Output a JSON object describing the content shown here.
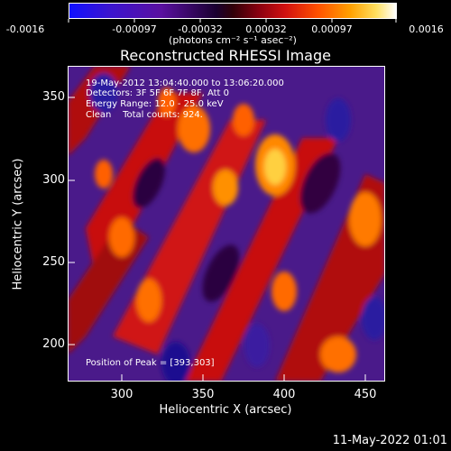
{
  "colorbar": {
    "ticks": [
      "-0.0016",
      "-0.00097",
      "-0.00032",
      "0.00032",
      "0.00097",
      "0.0016"
    ],
    "units_label": "(photons cm⁻² s⁻¹ asec⁻²)"
  },
  "image": {
    "title": "Reconstructed RHESSI Image",
    "info_lines": [
      "19-May-2012 13:04:40.000 to 13:06:20.000",
      "Detectors: 3F 5F 6F 7F 8F, Att 0",
      "Energy Range: 12.0 - 25.0 keV",
      "Clean    Total counts: 924."
    ],
    "peak_label": "Position of Peak = [393,303]",
    "x_axis_label": "Heliocentric X (arcsec)",
    "y_axis_label": "Heliocentric Y (arcsec)",
    "x_ticks": [
      "300",
      "350",
      "400",
      "450"
    ],
    "y_ticks": [
      "200",
      "250",
      "300",
      "350"
    ]
  },
  "footer": {
    "timestamp": "11-May-2022 01:01"
  }
}
